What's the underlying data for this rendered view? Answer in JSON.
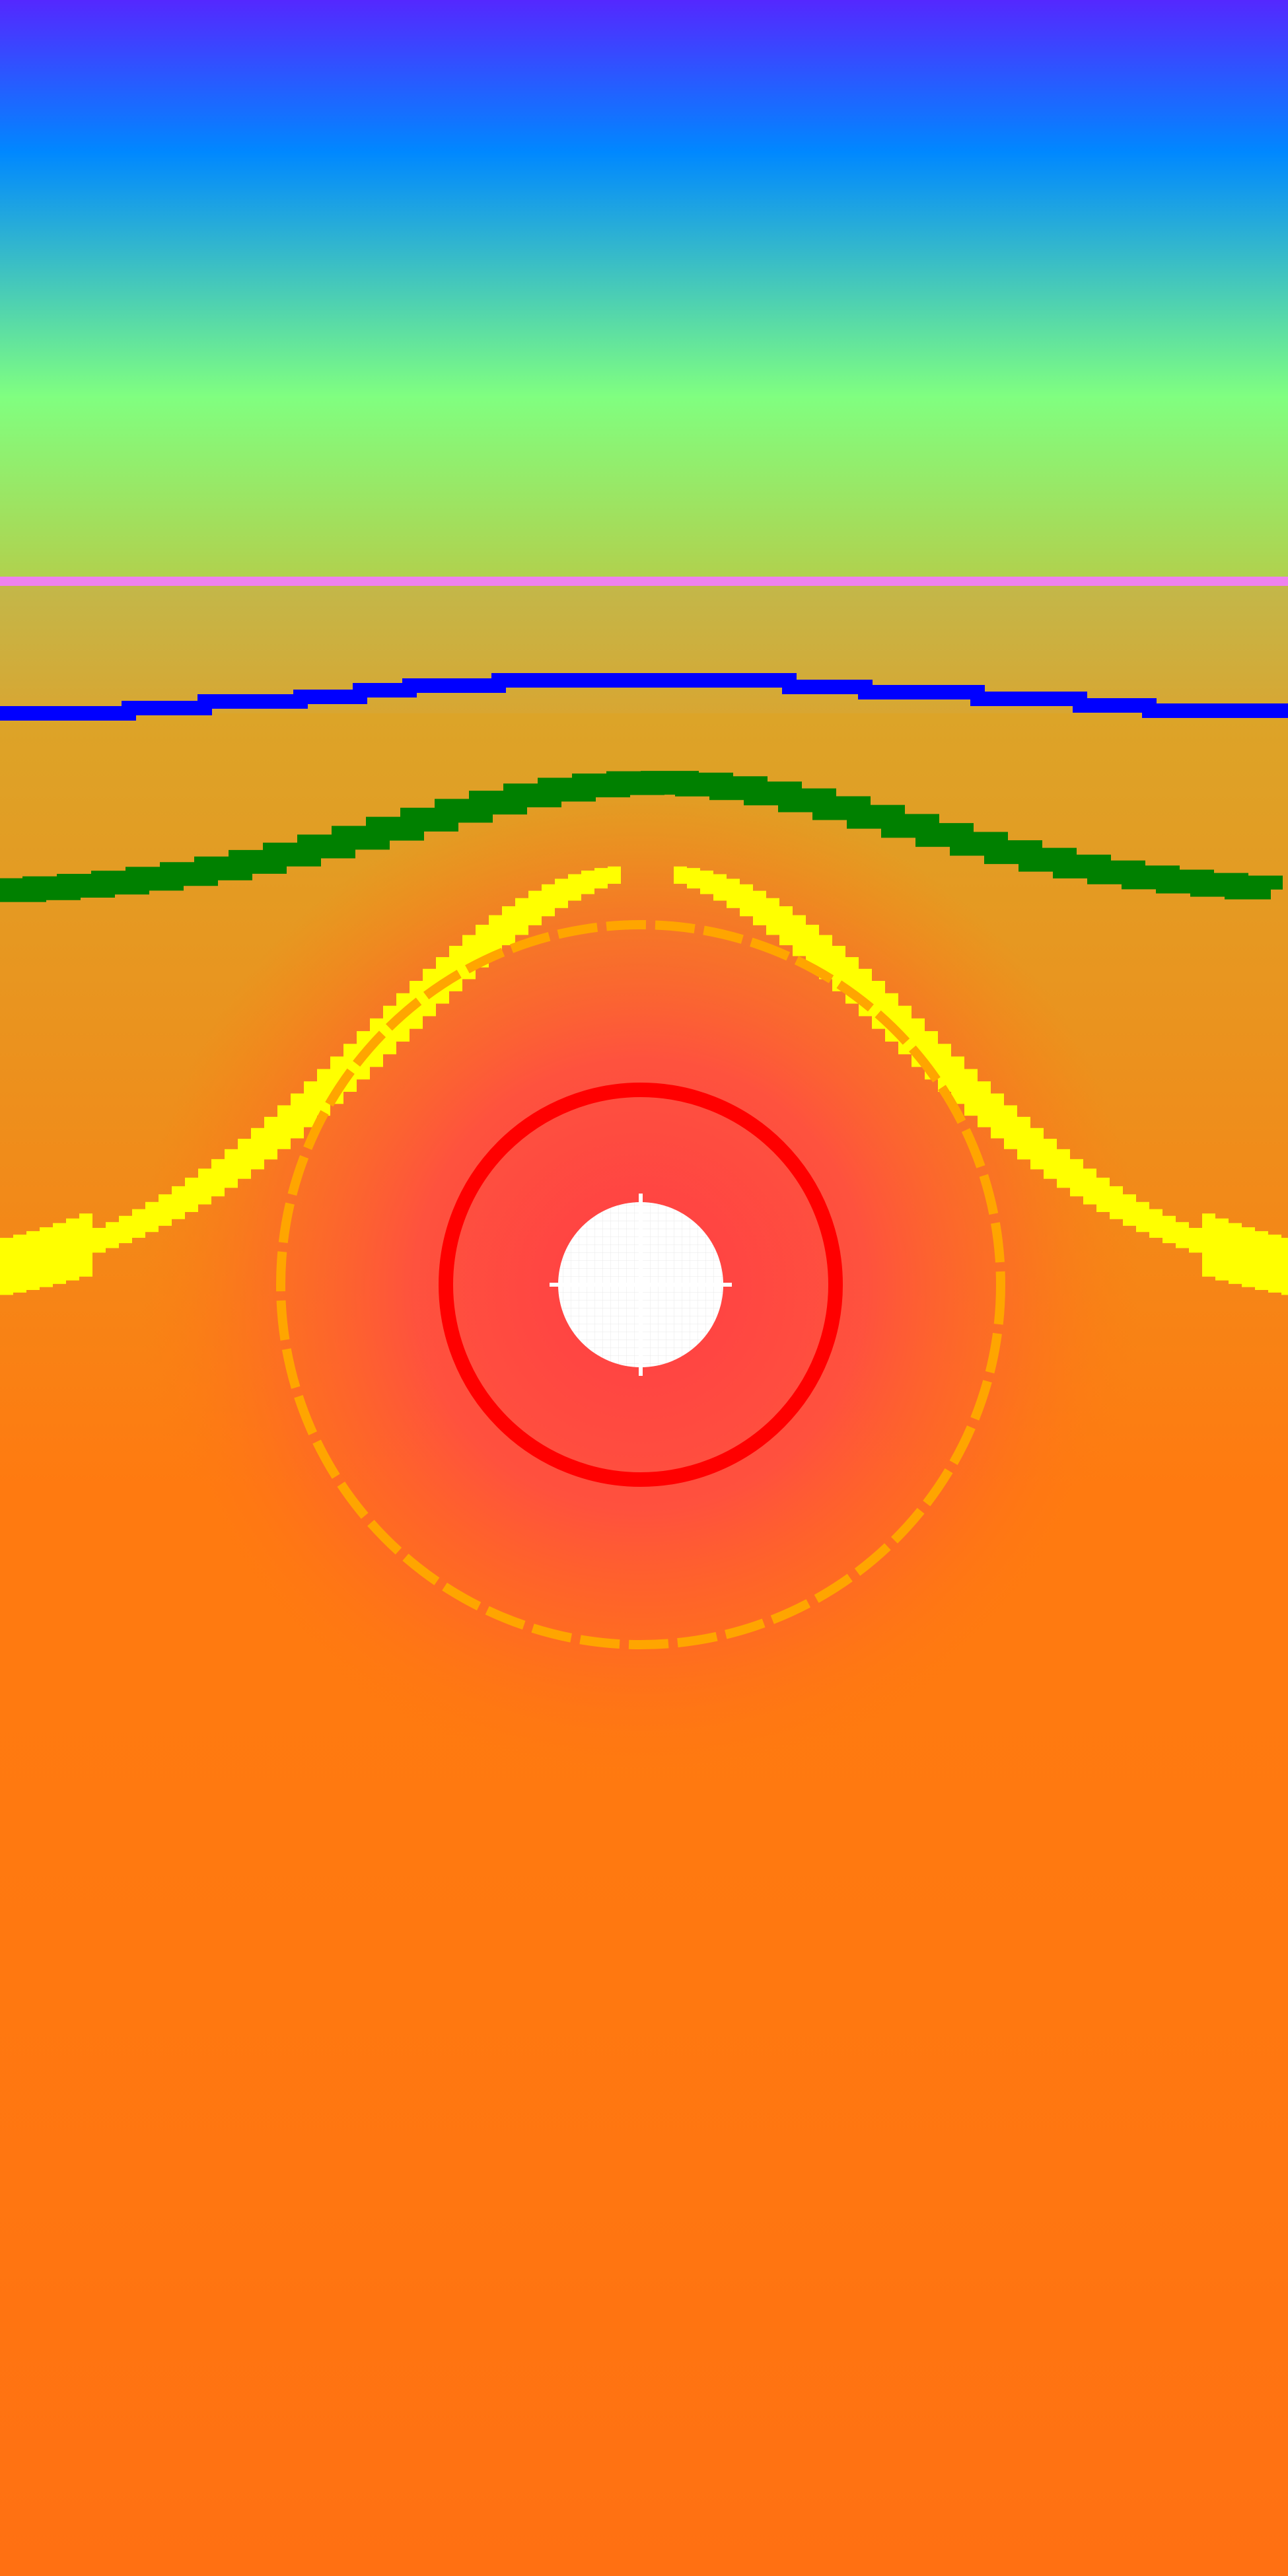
{
  "chart_data": {
    "type": "heatmap",
    "title": "",
    "xlabel": "",
    "ylabel": "",
    "grid": false,
    "legend": "none",
    "colorscale": [
      "#5428ff",
      "#0088ff",
      "#80ff80",
      "#d5b83a",
      "#ff7a10",
      "#ff3d45"
    ],
    "background_bands": [
      {
        "from_color": "#5428ff",
        "to_color": "#0088ff"
      },
      {
        "from_color": "#0088ff",
        "to_color": "#80ff80"
      },
      {
        "from_color": "#80ff80",
        "to_color": "#b2d04c"
      },
      {
        "from_color": "#c2b84a",
        "to_color": "#d8a632"
      },
      {
        "from_color": "#dca428",
        "to_color": "#ff7a10"
      }
    ],
    "hot_spot": {
      "center_color": "#ff3d45",
      "edge_color": "#ff7a10"
    },
    "contour_lines": [
      {
        "name": "contour-violet",
        "color": "#ee82ee",
        "shape": "flat"
      },
      {
        "name": "contour-blue",
        "color": "#0000ff",
        "shape": "shallow-arch"
      },
      {
        "name": "contour-green",
        "color": "#008000",
        "shape": "arch"
      },
      {
        "name": "contour-yellow",
        "color": "#ffff00",
        "shape": "bell"
      },
      {
        "name": "contour-orange",
        "color": "#ffa500",
        "shape": "ring"
      },
      {
        "name": "contour-red",
        "color": "#ff0000",
        "shape": "ring"
      }
    ],
    "core": {
      "color": "#ffffff",
      "shape": "disc"
    }
  }
}
